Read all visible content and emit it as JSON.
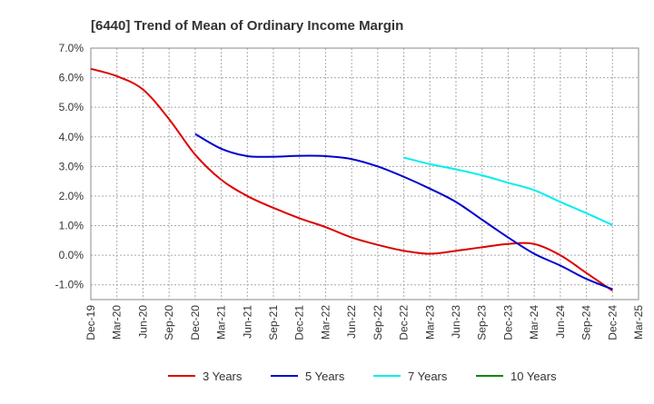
{
  "chart_data": {
    "type": "line",
    "title": "[6440]  Trend of Mean of Ordinary Income Margin",
    "xlabel": "",
    "ylabel": "",
    "x_ticks": [
      "Dec-19",
      "Mar-20",
      "Jun-20",
      "Sep-20",
      "Dec-20",
      "Mar-21",
      "Jun-21",
      "Sep-21",
      "Dec-21",
      "Mar-22",
      "Jun-22",
      "Sep-22",
      "Dec-22",
      "Mar-23",
      "Jun-23",
      "Sep-23",
      "Dec-23",
      "Mar-24",
      "Jun-24",
      "Sep-24",
      "Dec-24",
      "Mar-25"
    ],
    "y_ticks": [
      "7.0%",
      "6.0%",
      "5.0%",
      "4.0%",
      "3.0%",
      "2.0%",
      "1.0%",
      "0.0%",
      "-1.0%"
    ],
    "y_tick_values": [
      7,
      6,
      5,
      4,
      3,
      2,
      1,
      0,
      -1
    ],
    "ylim": [
      -1.5,
      7.0
    ],
    "grid": true,
    "legend_position": "bottom",
    "series": [
      {
        "name": "3 Years",
        "color": "#dd0000",
        "x": [
          "Dec-19",
          "Mar-20",
          "Jun-20",
          "Sep-20",
          "Dec-20",
          "Mar-21",
          "Jun-21",
          "Sep-21",
          "Dec-21",
          "Mar-22",
          "Jun-22",
          "Sep-22",
          "Dec-22",
          "Mar-23",
          "Jun-23",
          "Sep-23",
          "Dec-23",
          "Mar-24",
          "Jun-24",
          "Sep-24",
          "Dec-24"
        ],
        "values": [
          6.3,
          6.05,
          5.6,
          4.6,
          3.4,
          2.55,
          2.0,
          1.6,
          1.25,
          0.95,
          0.6,
          0.35,
          0.15,
          0.05,
          0.15,
          0.27,
          0.38,
          0.38,
          0.0,
          -0.6,
          -1.2
        ]
      },
      {
        "name": "5 Years",
        "color": "#0000cc",
        "x": [
          "Dec-20",
          "Mar-21",
          "Jun-21",
          "Sep-21",
          "Dec-21",
          "Mar-22",
          "Jun-22",
          "Sep-22",
          "Dec-22",
          "Mar-23",
          "Jun-23",
          "Sep-23",
          "Dec-23",
          "Mar-24",
          "Jun-24",
          "Sep-24",
          "Dec-24"
        ],
        "values": [
          4.1,
          3.6,
          3.35,
          3.33,
          3.36,
          3.35,
          3.25,
          3.0,
          2.65,
          2.25,
          1.8,
          1.2,
          0.6,
          0.05,
          -0.35,
          -0.8,
          -1.15
        ]
      },
      {
        "name": "7 Years",
        "color": "#00eeee",
        "x": [
          "Dec-22",
          "Mar-23",
          "Jun-23",
          "Sep-23",
          "Dec-23",
          "Mar-24",
          "Jun-24",
          "Sep-24",
          "Dec-24"
        ],
        "values": [
          3.3,
          3.08,
          2.9,
          2.7,
          2.45,
          2.2,
          1.8,
          1.42,
          1.02
        ]
      },
      {
        "name": "10 Years",
        "color": "#008800",
        "x": [],
        "values": []
      }
    ]
  }
}
